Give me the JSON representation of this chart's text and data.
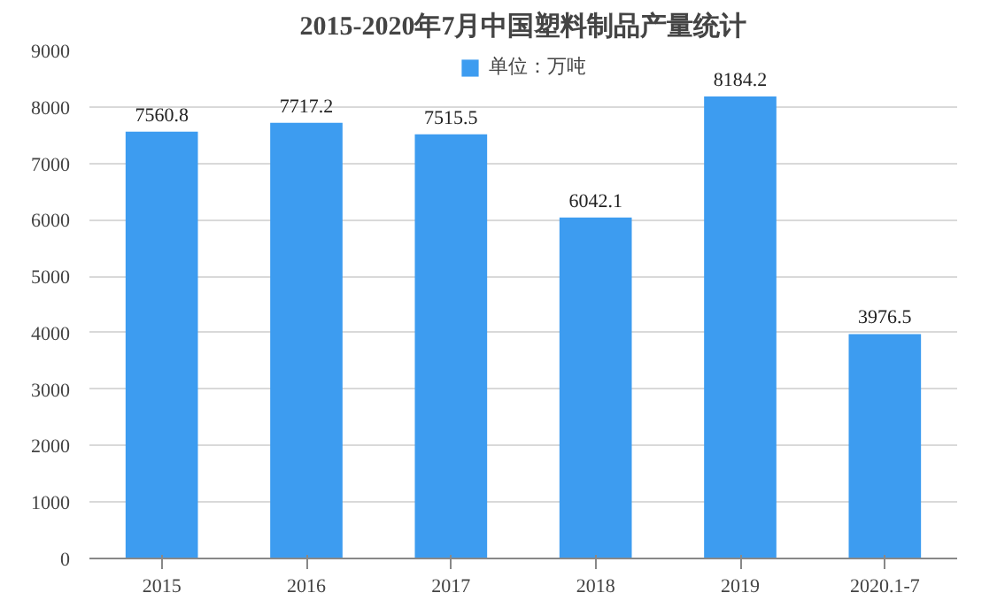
{
  "chart_data": {
    "type": "bar",
    "title": "2015-2020年7月中国塑料制品产量统计",
    "categories": [
      "2015",
      "2016",
      "2017",
      "2018",
      "2019",
      "2020.1-7"
    ],
    "series": [
      {
        "name": "单位：万吨",
        "color": "#3d9cf0",
        "values": [
          7560.8,
          7717.2,
          7515.5,
          6042.1,
          8184.2,
          3976.5
        ]
      }
    ],
    "ylim": [
      0,
      9000
    ],
    "yticks": [
      0,
      1000,
      2000,
      3000,
      4000,
      5000,
      6000,
      7000,
      8000,
      9000
    ],
    "grid": "y",
    "legend": "top",
    "data_labels": true
  }
}
